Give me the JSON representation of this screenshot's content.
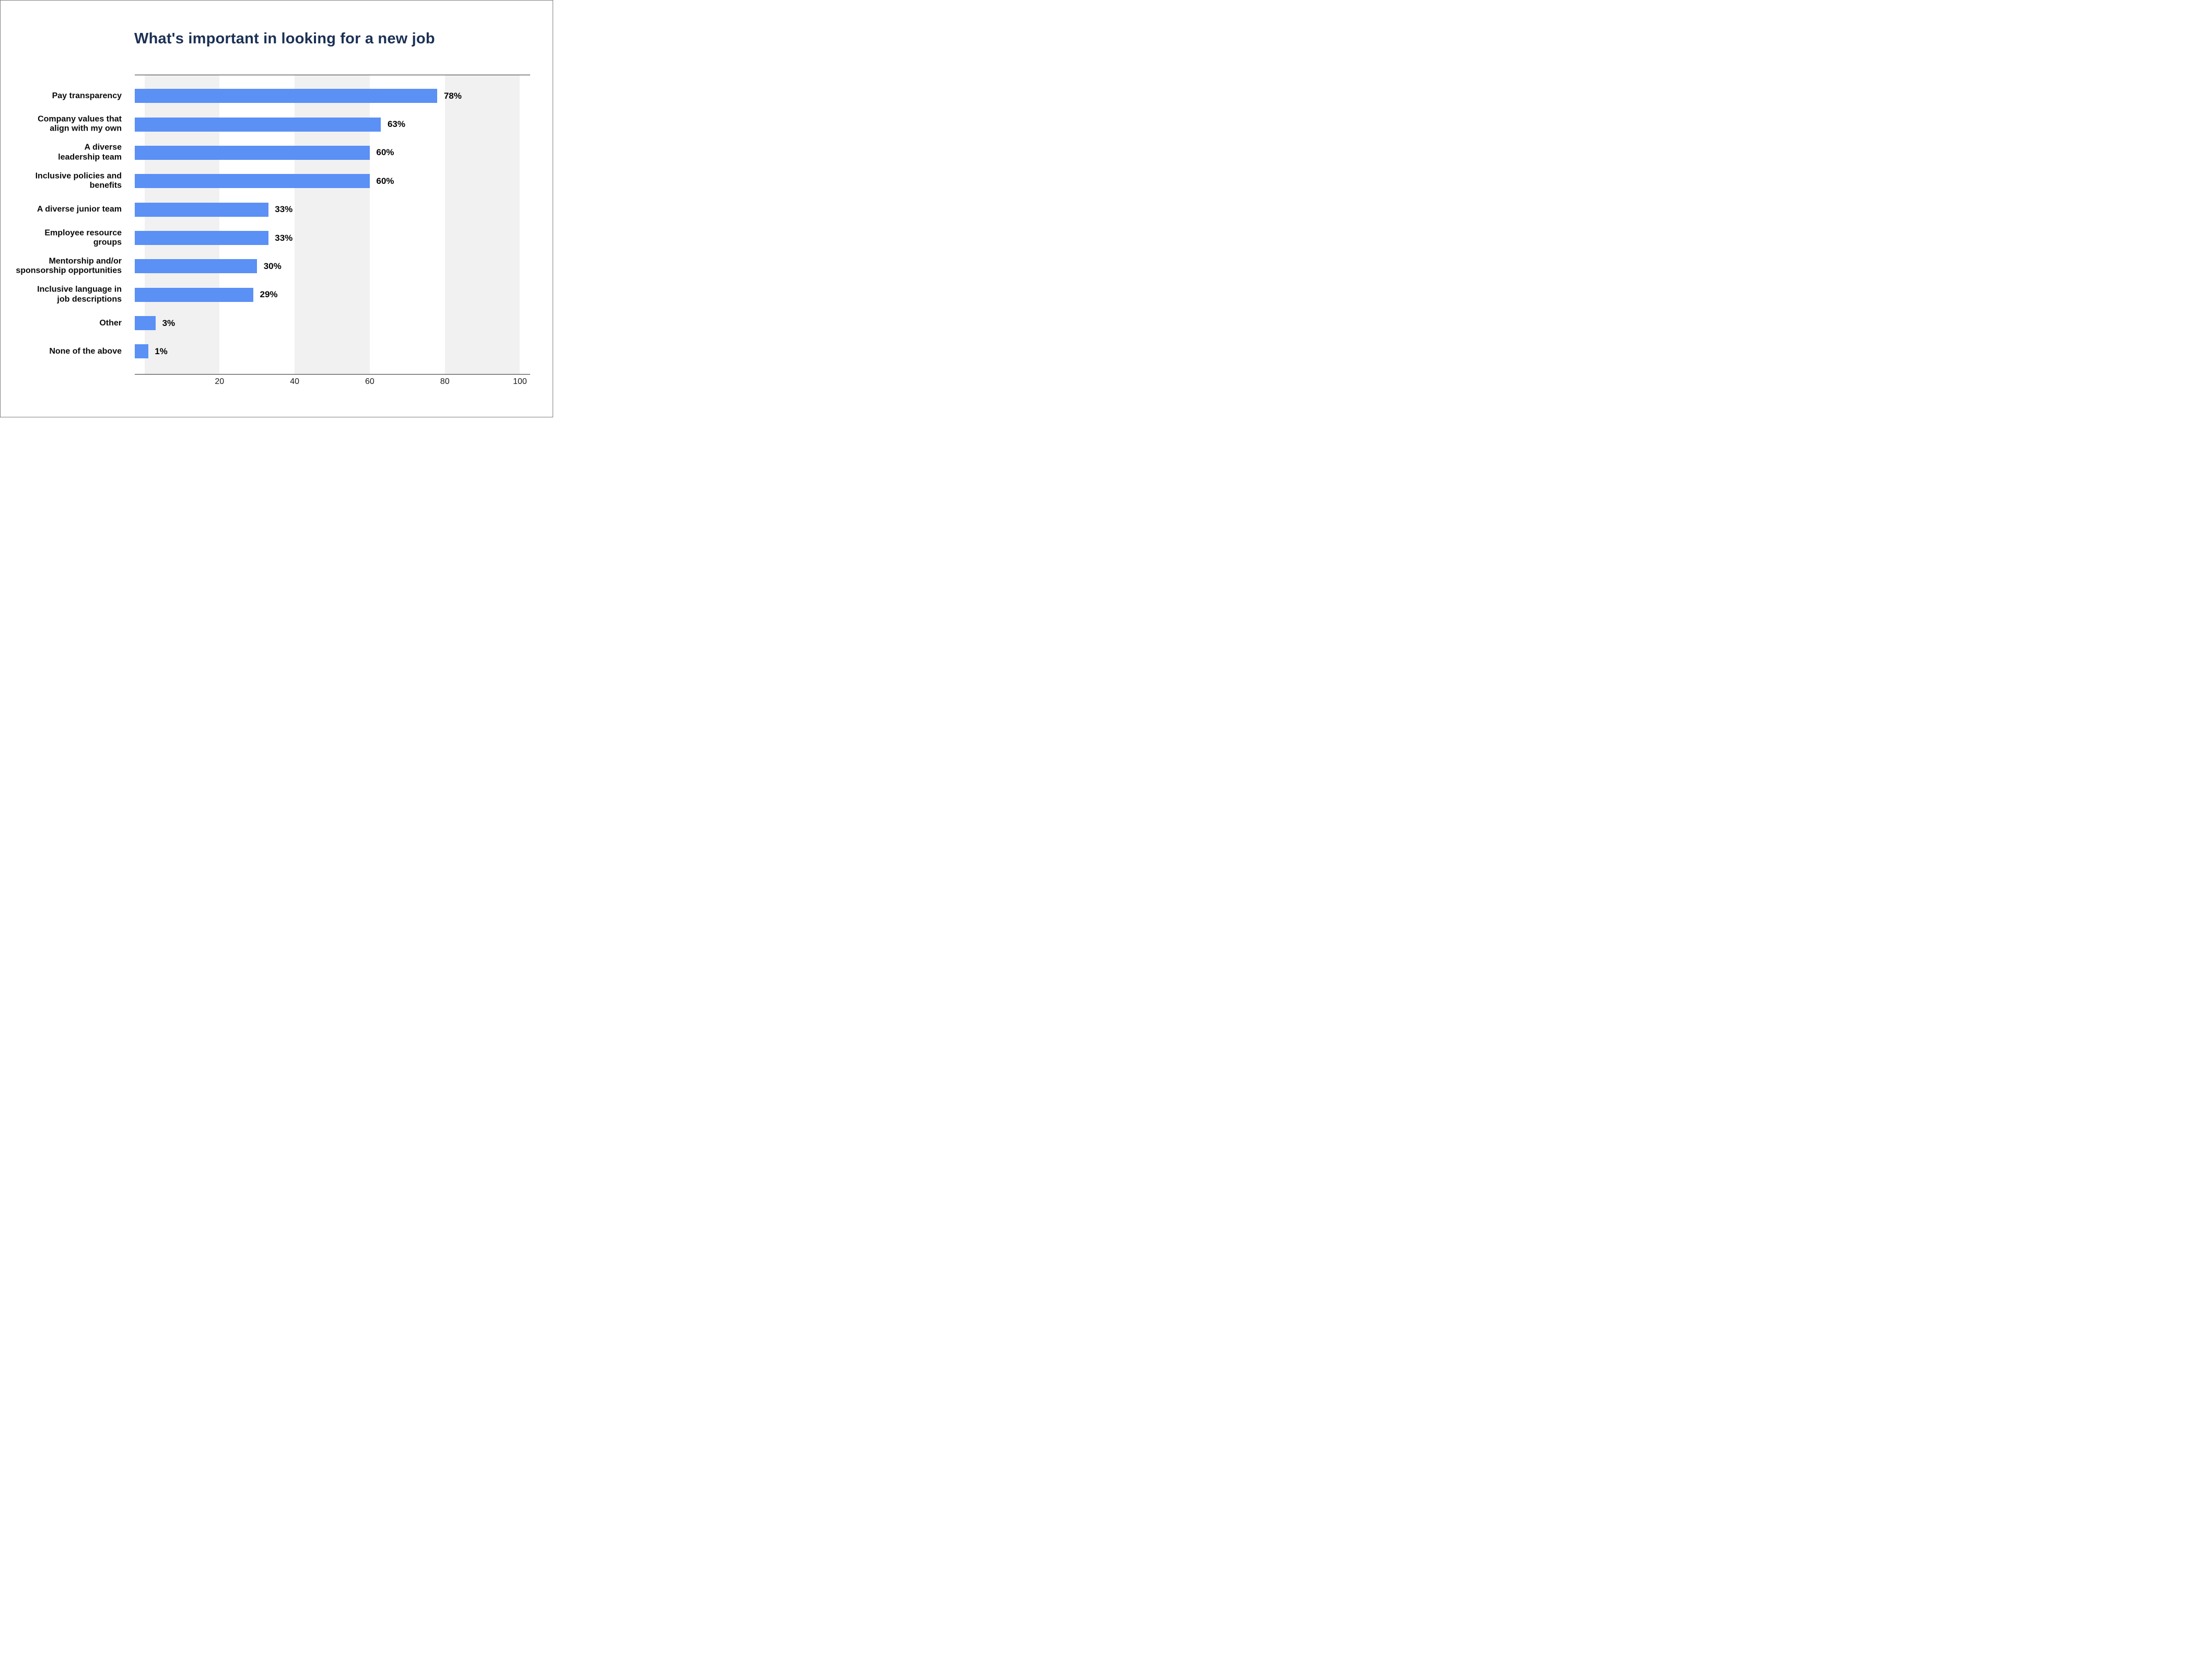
{
  "chart_data": {
    "type": "bar",
    "orientation": "horizontal",
    "title": "What's important in looking for a new job",
    "categories": [
      "Pay transparency",
      "Company values that\nalign with my own",
      "A diverse\nleadership team",
      "Inclusive policies and\nbenefits",
      "A diverse junior team",
      "Employee resource\ngroups",
      "Mentorship and/or\nsponsorship opportunities",
      "Inclusive language in\njob descriptions",
      "Other",
      "None of the above"
    ],
    "values": [
      78,
      63,
      60,
      60,
      33,
      33,
      30,
      29,
      3,
      1
    ],
    "value_labels": [
      "78%",
      "63%",
      "60%",
      "60%",
      "33%",
      "33%",
      "30%",
      "29%",
      "3%",
      "1%"
    ],
    "x_ticks": [
      20,
      40,
      60,
      80,
      100
    ],
    "xlim": [
      0,
      100
    ],
    "xlabel": "",
    "ylabel": "",
    "legend": "none",
    "grid": "alternating vertical bands on 20-unit intervals",
    "colors": {
      "bar": "#5b90f5",
      "band": "#f1f1f2",
      "title": "#1b3054",
      "axis_line": "#2b2b2b",
      "frame_border": "#7f7f7f",
      "value_label": "#000000",
      "category_label": "#0a0a0a",
      "tick_label": "#1a1a1a"
    }
  }
}
